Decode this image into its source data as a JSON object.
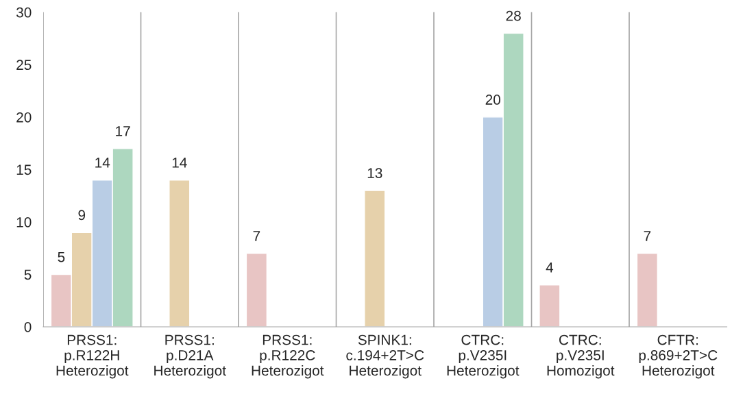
{
  "chart_data": {
    "type": "bar",
    "categories": [
      "PRSS1:\np.R122H\nHeterozigot",
      "PRSS1:\np.D21A\nHeterozigot",
      "PRSS1:\np.R122C\nHeterozigot",
      "SPINK1:\nc.194+2T>C\nHeterozigot",
      "CTRC:\np.V235I\nHeterozigot",
      "CTRC:\np.V235I\nHomozigot",
      "CFTR:\np.869+2T>C\nHeterozigot"
    ],
    "series": [
      {
        "color": "#e8c5c4",
        "values": [
          5,
          null,
          7,
          null,
          null,
          4,
          7
        ]
      },
      {
        "color": "#e6d1ab",
        "values": [
          9,
          14,
          null,
          13,
          null,
          null,
          null
        ]
      },
      {
        "color": "#b9cde5",
        "values": [
          14,
          null,
          null,
          null,
          20,
          null,
          null
        ]
      },
      {
        "color": "#add7bf",
        "values": [
          17,
          null,
          null,
          null,
          28,
          null,
          null
        ]
      }
    ],
    "ylim": [
      0,
      30
    ],
    "yticks": [
      0,
      5,
      10,
      15,
      20,
      25,
      30
    ],
    "grid": "x",
    "data_labels": true,
    "legend": false
  }
}
